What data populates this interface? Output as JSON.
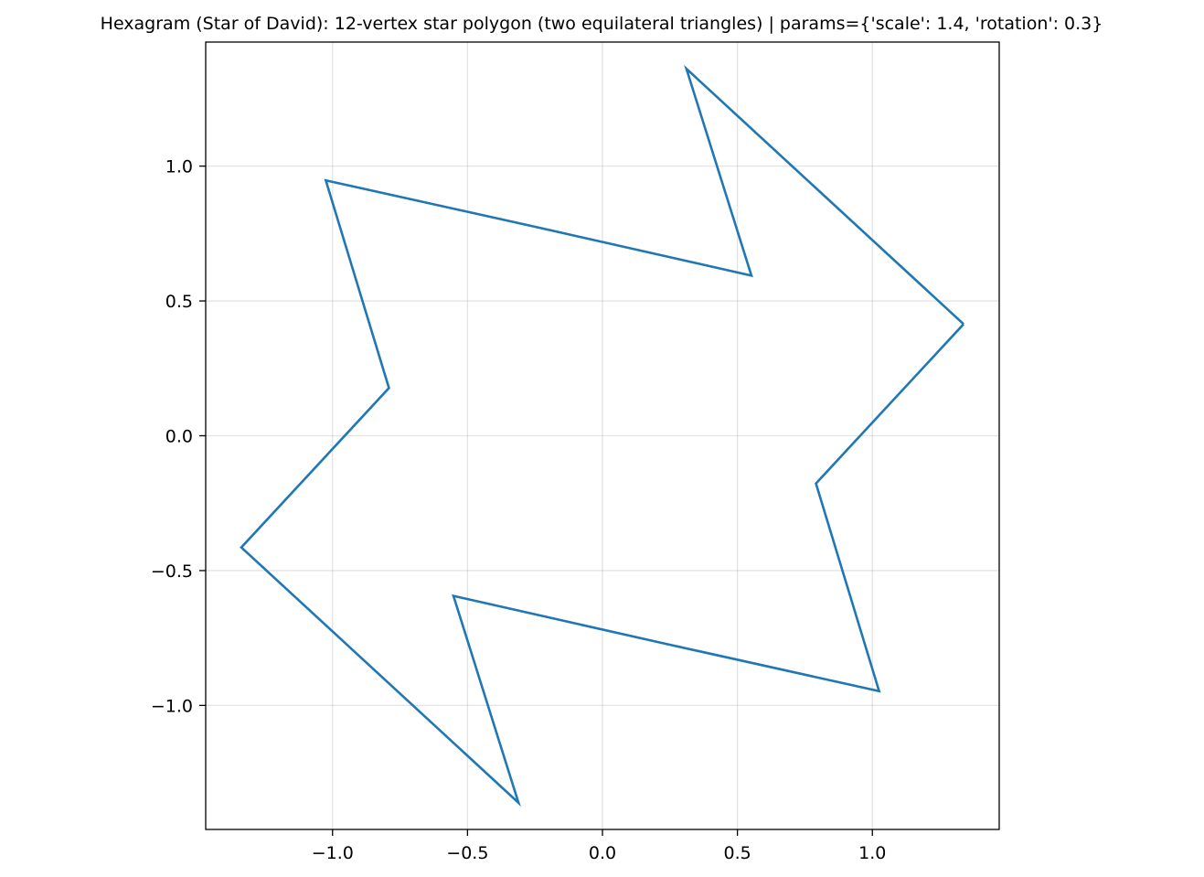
{
  "chart_data": {
    "type": "line",
    "title": "Hexagram (Star of David): 12-vertex star polygon (two equilateral triangles) | params={'scale': 1.4, 'rotation': 0.3}",
    "xlabel": "",
    "ylabel": "",
    "xlim": [
      -1.47,
      1.47
    ],
    "ylim": [
      -1.46,
      1.46
    ],
    "grid": true,
    "x_ticks": [
      -1.0,
      -0.5,
      0.0,
      0.5,
      1.0
    ],
    "x_tick_labels": [
      "−1.0",
      "−0.5",
      "0.0",
      "0.5",
      "1.0"
    ],
    "y_ticks": [
      -1.0,
      -0.5,
      0.0,
      0.5,
      1.0
    ],
    "y_tick_labels": [
      "−1.0",
      "−0.5",
      "0.0",
      "0.5",
      "1.0"
    ],
    "series": [
      {
        "color": "#1f77b4",
        "x": [
          1.338,
          0.791,
          1.025,
          0.236,
          -0.552,
          -0.311,
          -1.338,
          -0.791,
          -1.025,
          -0.236,
          0.552,
          0.311,
          1.338
        ],
        "y": [
          0.414,
          -0.177,
          -0.947,
          -0.772,
          -0.594,
          -1.361,
          -0.414,
          0.177,
          0.947,
          0.772,
          0.594,
          1.361,
          0.414
        ]
      }
    ]
  }
}
